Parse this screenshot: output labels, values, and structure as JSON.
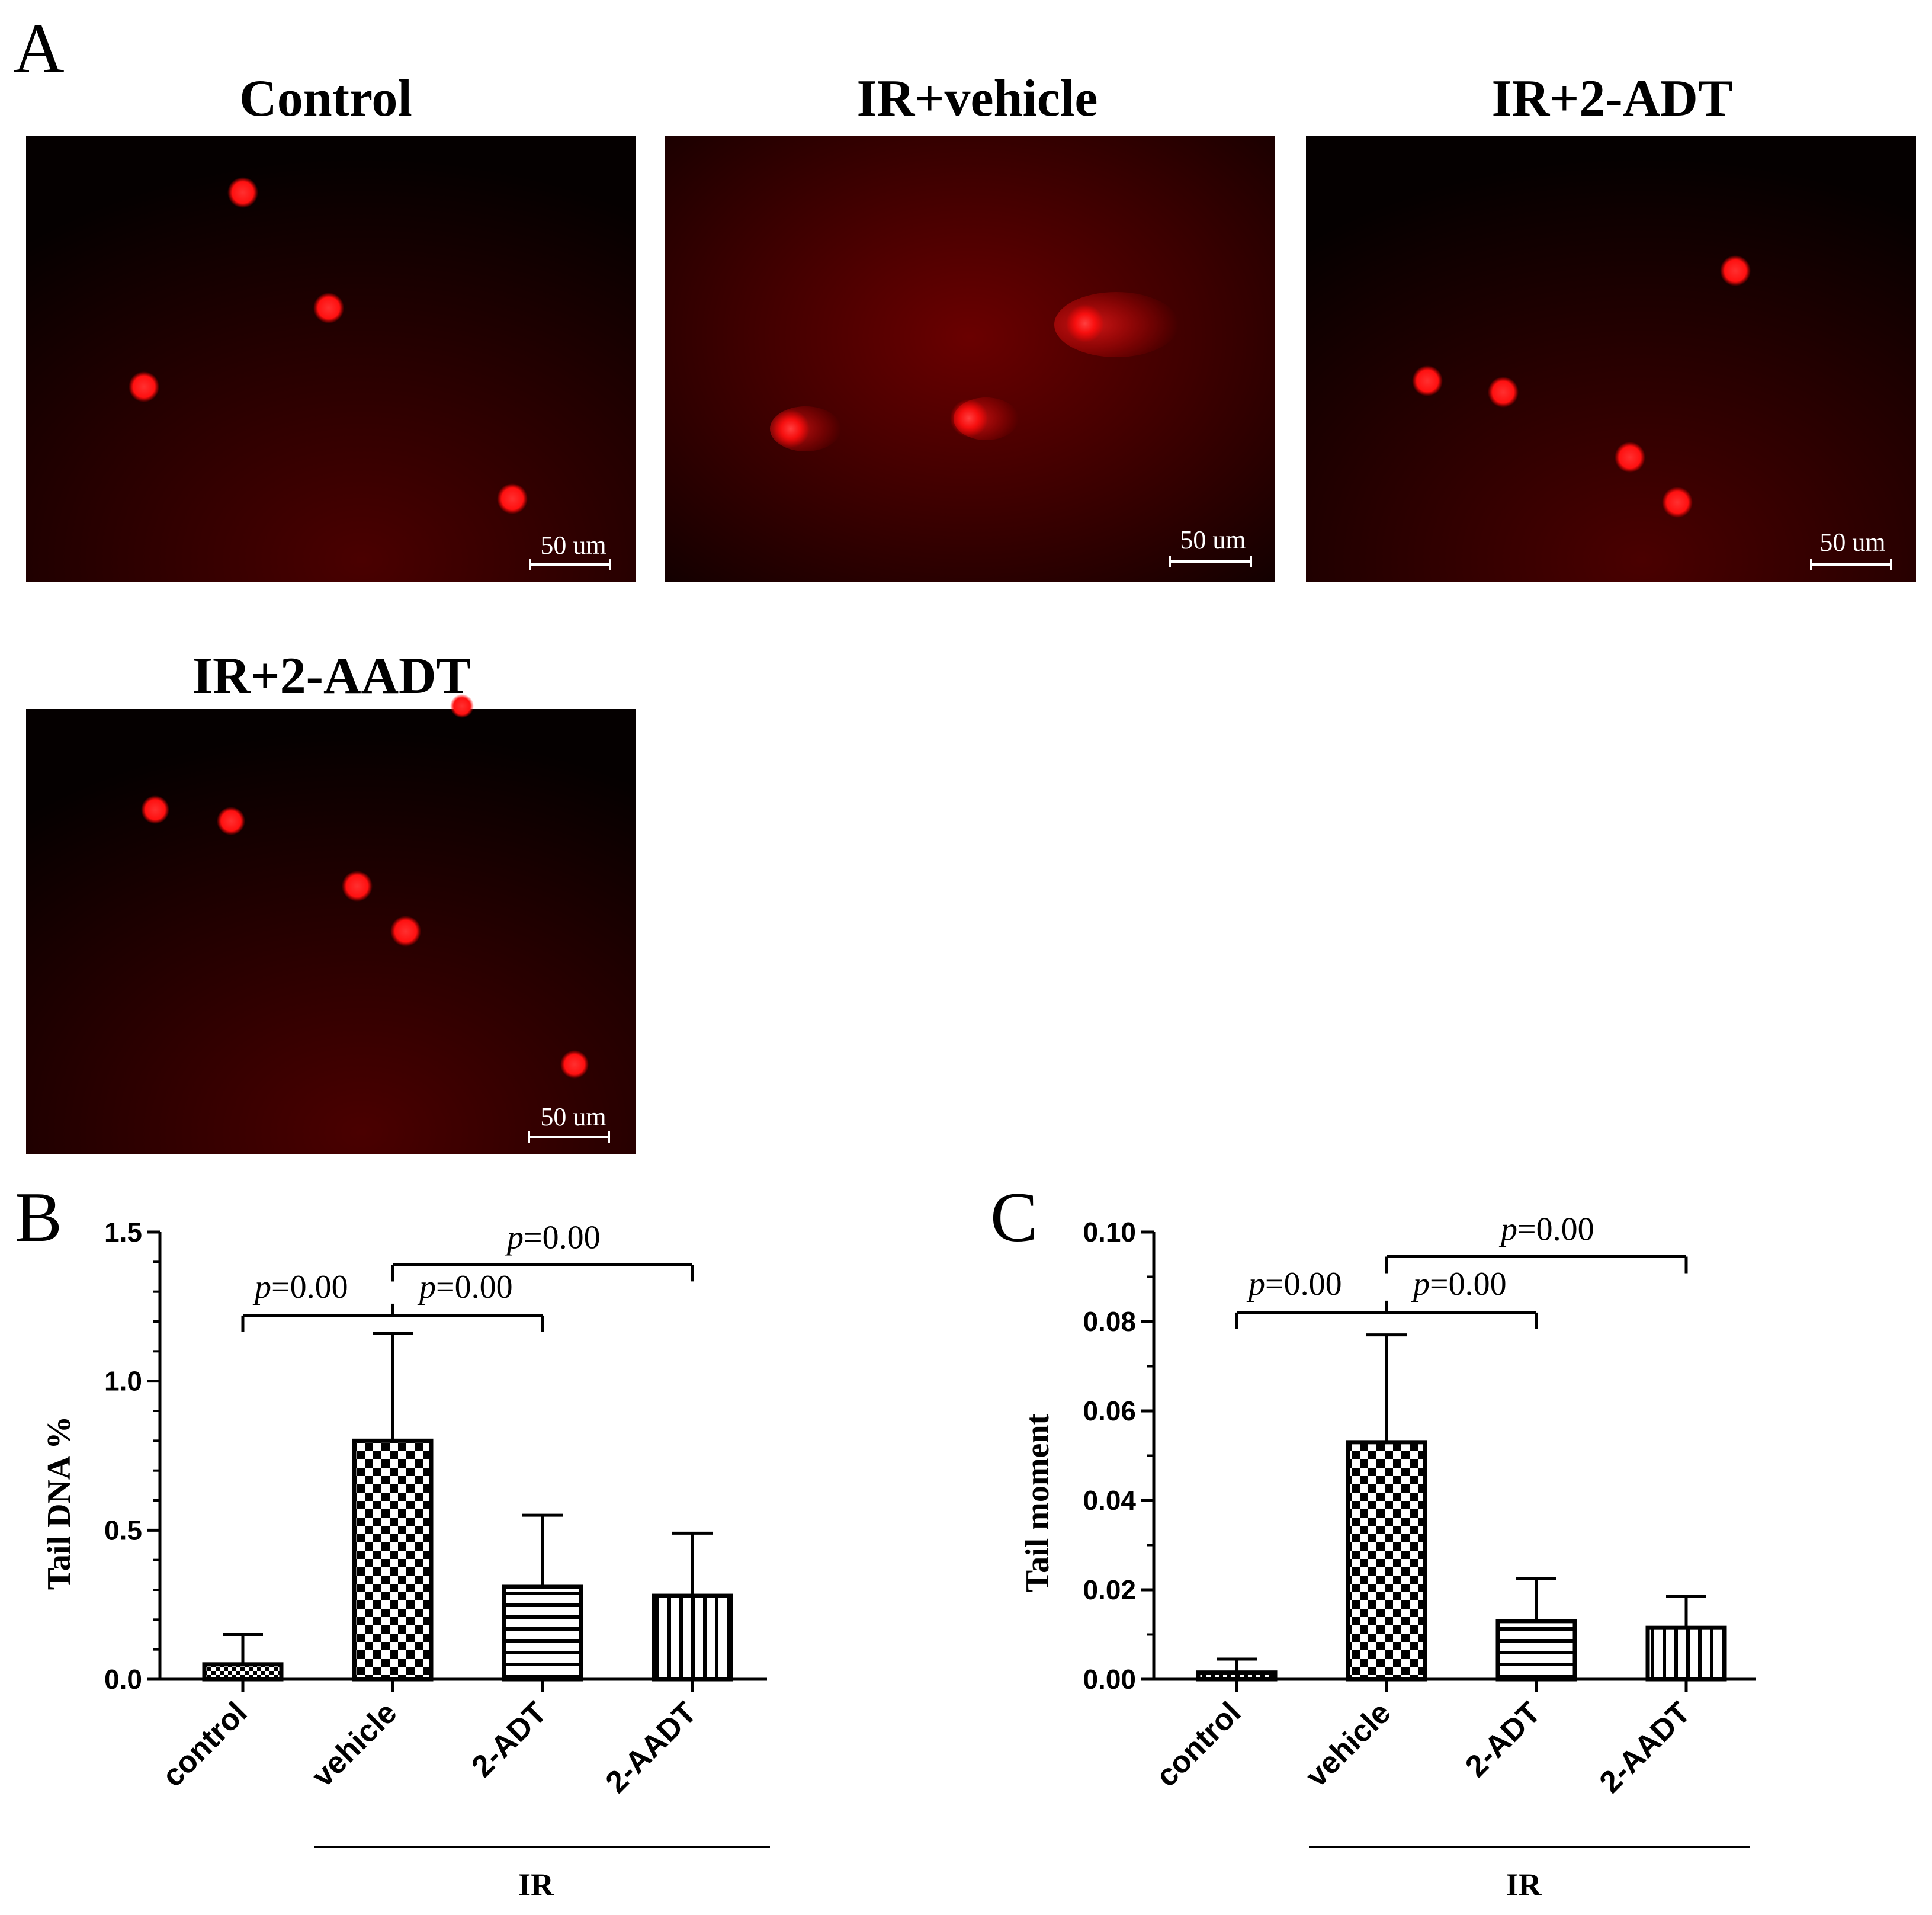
{
  "figure": {
    "panel_a": {
      "letter": "A",
      "images": [
        {
          "title": "Control",
          "scale_bar": "50 um"
        },
        {
          "title": "IR+vehicle",
          "scale_bar": "50 um"
        },
        {
          "title": "IR+2-ADT",
          "scale_bar": "50 um"
        },
        {
          "title": "IR+2-AADT",
          "scale_bar": "50 um"
        }
      ],
      "colors": {
        "background": "#0a0000",
        "glow": "#5a0000",
        "nucleus": "#ff1a1a"
      }
    }
  },
  "chart_data": [
    {
      "panel": "B",
      "type": "bar",
      "ylabel": "Tail DNA %",
      "xlabel": "",
      "categories": [
        "control",
        "vehicle",
        "2-ADT",
        "2-AADT"
      ],
      "values": [
        0.05,
        0.8,
        0.31,
        0.28
      ],
      "error": [
        0.1,
        0.36,
        0.24,
        0.21
      ],
      "patterns": [
        "small-check",
        "checkerboard",
        "horizontal-lines",
        "vertical-lines"
      ],
      "ylim": [
        0,
        1.5
      ],
      "yticks": [
        0.0,
        0.5,
        1.0,
        1.5
      ],
      "tick_labels": [
        "0.0",
        "0.5",
        "1.0",
        "1.5"
      ],
      "group": {
        "label": "IR",
        "categories": [
          "vehicle",
          "2-ADT",
          "2-AADT"
        ]
      },
      "comparisons": [
        {
          "label": "=0.00",
          "italic_prefix": "p",
          "from": "control",
          "to": "2-ADT",
          "split_at": "vehicle",
          "y": 1.22,
          "label_anchor": "left"
        },
        {
          "label": "=0.00",
          "italic_prefix": "p",
          "from": "vehicle",
          "to": "2-AADT",
          "y": 1.39,
          "label_anchor": "middle"
        }
      ],
      "grid": false
    },
    {
      "panel": "C",
      "type": "bar",
      "ylabel": "Tail moment",
      "xlabel": "",
      "categories": [
        "control",
        "vehicle",
        "2-ADT",
        "2-AADT"
      ],
      "values": [
        0.0015,
        0.053,
        0.013,
        0.0115
      ],
      "error": [
        0.003,
        0.024,
        0.0095,
        0.007
      ],
      "patterns": [
        "small-check",
        "checkerboard",
        "horizontal-lines",
        "vertical-lines"
      ],
      "ylim": [
        0,
        0.1
      ],
      "yticks": [
        0.0,
        0.02,
        0.04,
        0.06,
        0.08,
        0.1
      ],
      "tick_labels": [
        "0.00",
        "0.02",
        "0.04",
        "0.06",
        "0.08",
        "0.10"
      ],
      "group": {
        "label": "IR",
        "categories": [
          "vehicle",
          "2-ADT",
          "2-AADT"
        ]
      },
      "comparisons": [
        {
          "label": "=0.00",
          "italic_prefix": "p",
          "from": "control",
          "to": "2-ADT",
          "split_at": "vehicle",
          "y": 0.082,
          "label_anchor": "left"
        },
        {
          "label": "=0.00",
          "italic_prefix": "p",
          "from": "vehicle",
          "to": "2-AADT",
          "y": 0.0945,
          "label_anchor": "middle"
        }
      ],
      "grid": false
    }
  ]
}
